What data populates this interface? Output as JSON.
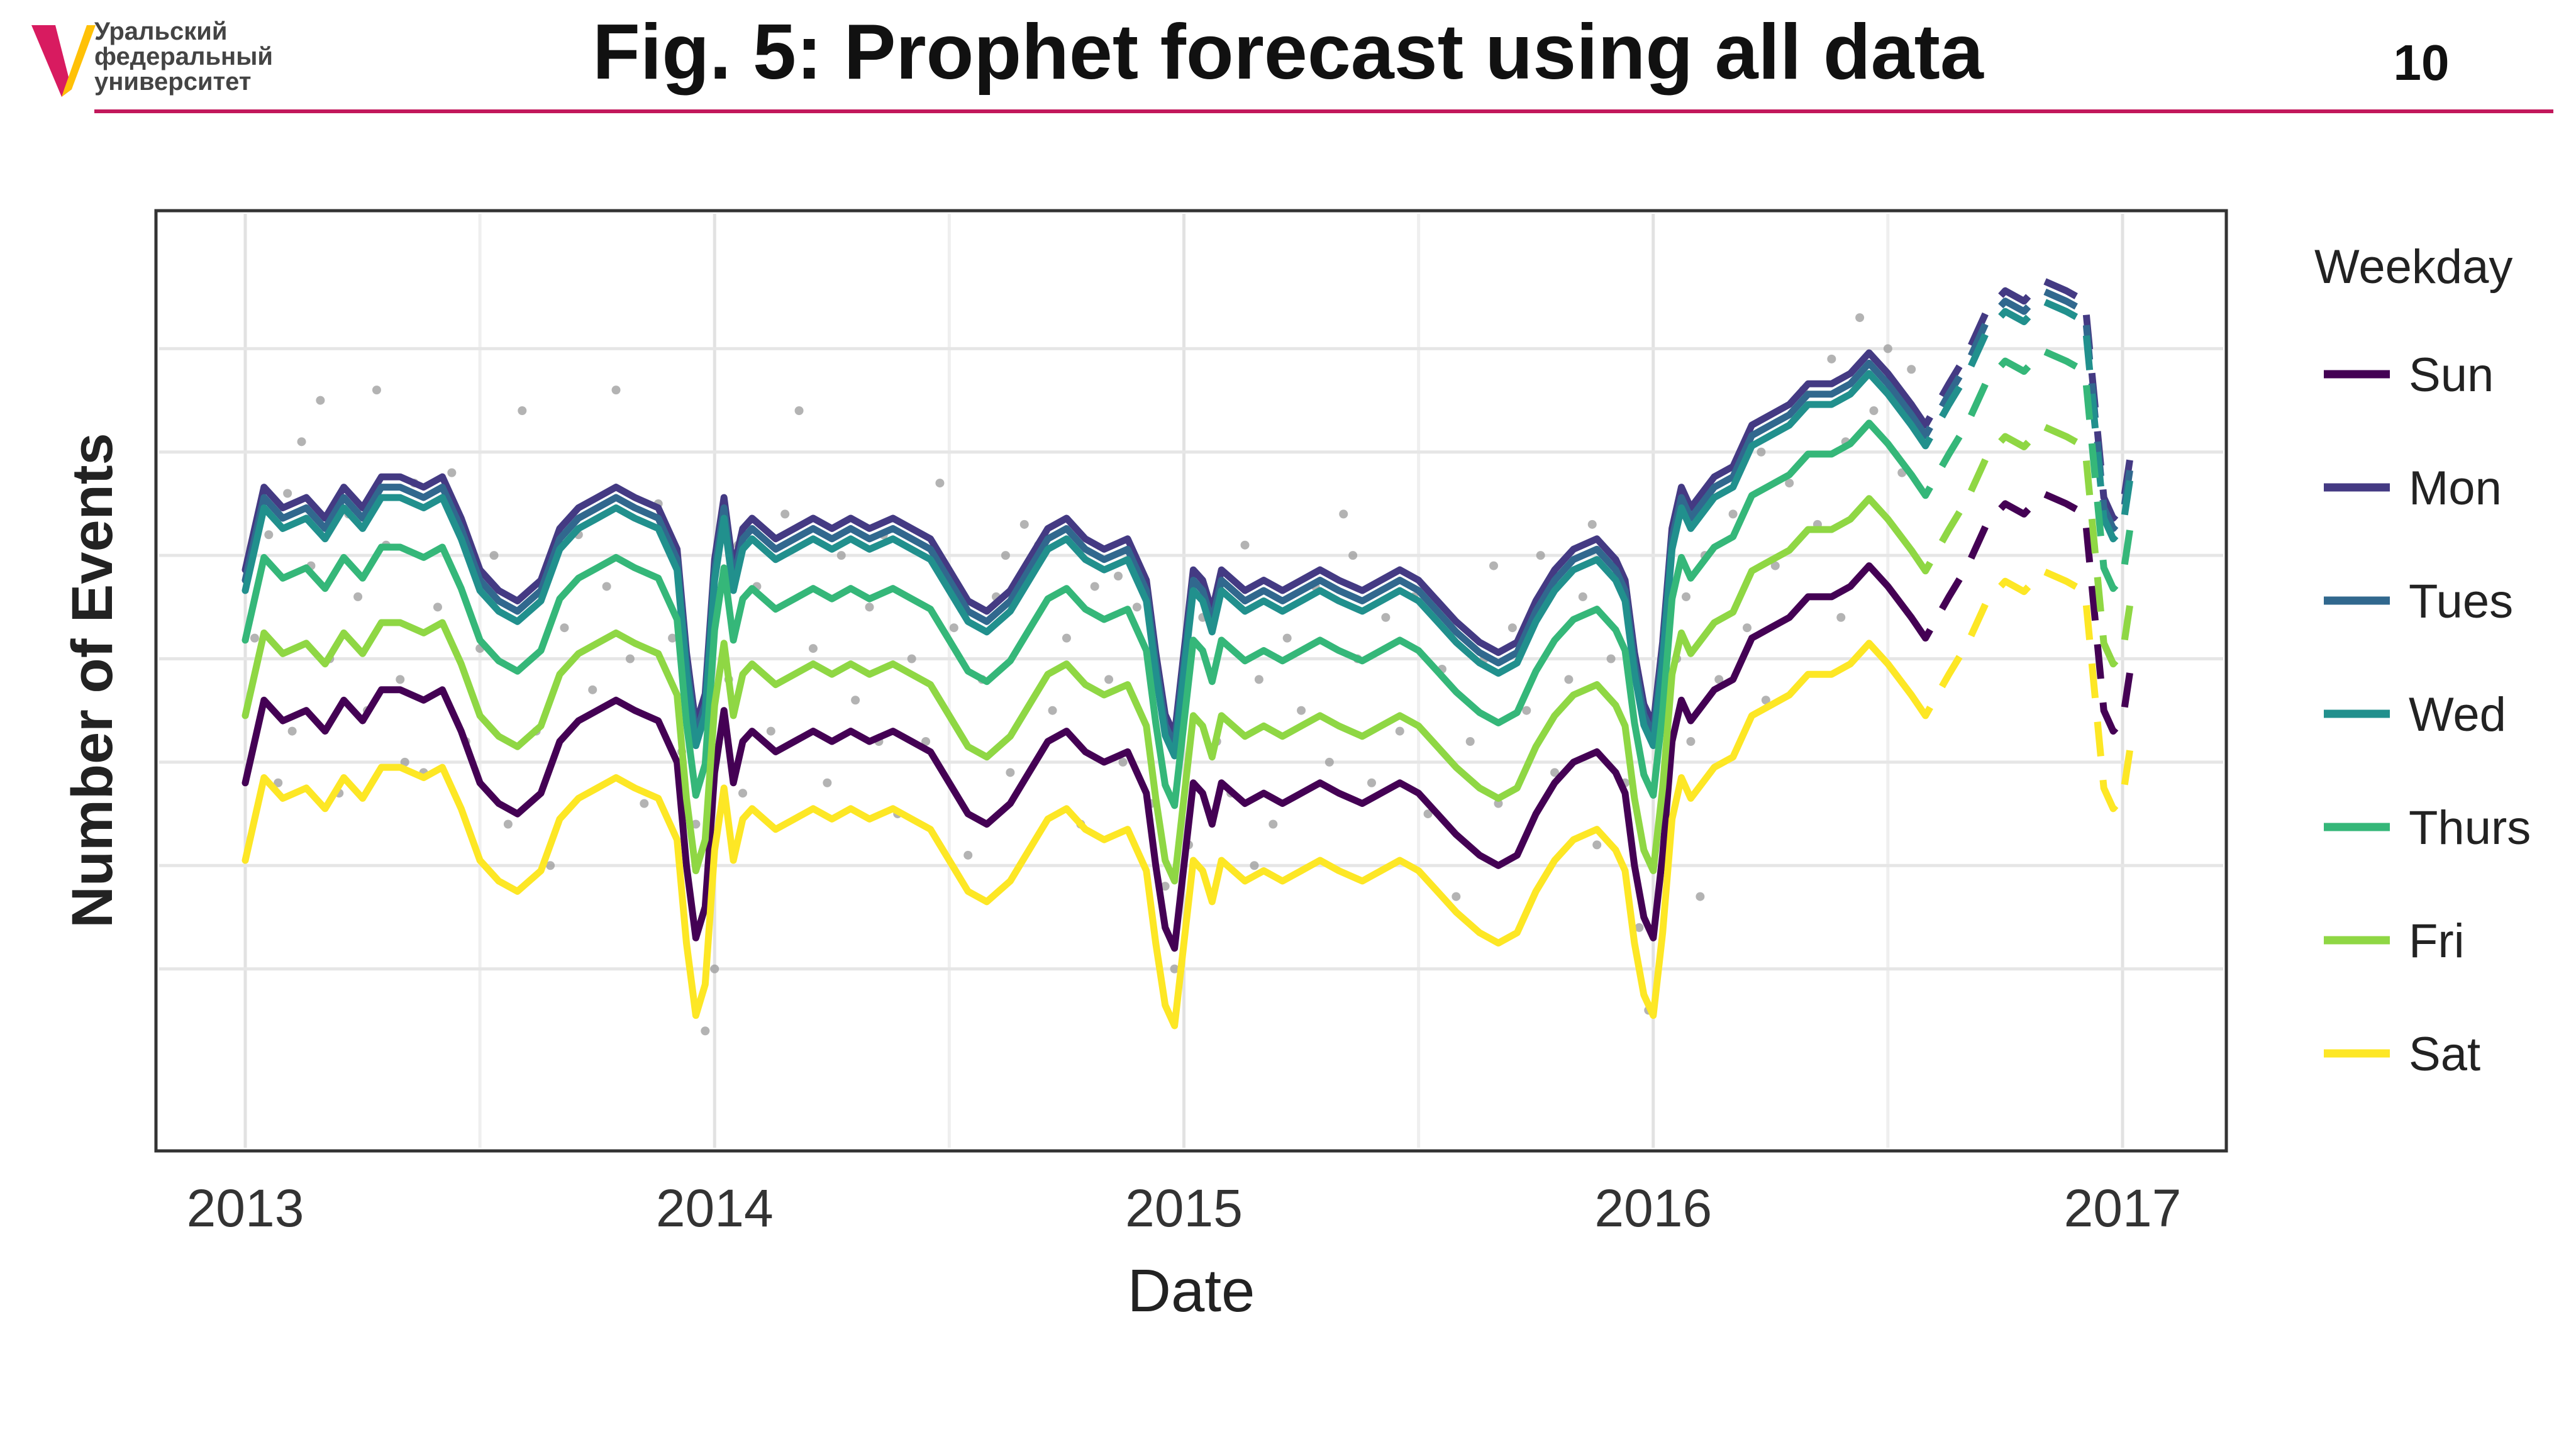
{
  "header": {
    "university_lines": [
      "Уральский",
      "федеральный",
      "университет"
    ],
    "title": "Fig. 5: Prophet forecast using all data",
    "slide_number": "10",
    "accent_color": "#c2185b",
    "logo_colors": [
      "#d81b60",
      "#ffc107"
    ]
  },
  "chart_data": {
    "type": "line",
    "title": "",
    "xlabel": "Date",
    "ylabel": "Number of Events",
    "x_ticks": [
      "2013",
      "2014",
      "2015",
      "2016",
      "2017"
    ],
    "xlim": [
      2013.0,
      2017.12
    ],
    "y_tick_labels_shown": false,
    "grid": true,
    "history_end": 2016.55,
    "forecast_style": "dashed",
    "legend": {
      "title": "Weekday",
      "position": "right"
    },
    "x": [
      2013.0,
      2013.04,
      2013.08,
      2013.13,
      2013.17,
      2013.21,
      2013.25,
      2013.29,
      2013.33,
      2013.38,
      2013.42,
      2013.46,
      2013.5,
      2013.54,
      2013.58,
      2013.63,
      2013.67,
      2013.71,
      2013.75,
      2013.79,
      2013.83,
      2013.88,
      2013.92,
      2013.94,
      2013.96,
      2013.98,
      2014.0,
      2014.02,
      2014.04,
      2014.06,
      2014.08,
      2014.13,
      2014.17,
      2014.21,
      2014.25,
      2014.29,
      2014.33,
      2014.38,
      2014.42,
      2014.46,
      2014.5,
      2014.54,
      2014.58,
      2014.63,
      2014.67,
      2014.71,
      2014.75,
      2014.79,
      2014.83,
      2014.88,
      2014.92,
      2014.94,
      2014.96,
      2014.98,
      2015.0,
      2015.02,
      2015.04,
      2015.06,
      2015.08,
      2015.13,
      2015.17,
      2015.21,
      2015.25,
      2015.29,
      2015.33,
      2015.38,
      2015.42,
      2015.46,
      2015.5,
      2015.54,
      2015.58,
      2015.63,
      2015.67,
      2015.71,
      2015.75,
      2015.79,
      2015.83,
      2015.88,
      2015.92,
      2015.94,
      2015.96,
      2015.98,
      2016.0,
      2016.02,
      2016.04,
      2016.06,
      2016.08,
      2016.13,
      2016.17,
      2016.21,
      2016.25,
      2016.29,
      2016.33,
      2016.38,
      2016.42,
      2016.46,
      2016.5,
      2016.55,
      2016.58,
      2016.63,
      2016.67,
      2016.71,
      2016.75,
      2016.79,
      2016.83,
      2016.88,
      2016.92,
      2016.96,
      2016.98,
      2017.0,
      2017.02
    ],
    "base": [
      48,
      56,
      54,
      55,
      53,
      56,
      54,
      57,
      57,
      56,
      57,
      53,
      48,
      46,
      45,
      47,
      52,
      54,
      55,
      56,
      55,
      54,
      50,
      40,
      33,
      36,
      49,
      55,
      48,
      52,
      53,
      51,
      52,
      53,
      52,
      53,
      52,
      53,
      52,
      51,
      48,
      45,
      44,
      46,
      49,
      52,
      53,
      51,
      50,
      51,
      47,
      40,
      34,
      32,
      40,
      48,
      47,
      44,
      48,
      46,
      47,
      46,
      47,
      48,
      47,
      46,
      47,
      48,
      47,
      45,
      43,
      41,
      40,
      41,
      45,
      48,
      50,
      51,
      49,
      47,
      40,
      35,
      33,
      41,
      52,
      56,
      54,
      57,
      58,
      62,
      63,
      64,
      66,
      66,
      67,
      69,
      67,
      64,
      62,
      66,
      69,
      73,
      75,
      74,
      76,
      75,
      74,
      55,
      53,
      54,
      60
    ],
    "series": [
      {
        "name": "Sun",
        "color": "#440154",
        "offset": 0
      },
      {
        "name": "Mon",
        "color": "#443a83",
        "offset": 20.6
      },
      {
        "name": "Tues",
        "color": "#31688e",
        "offset": 19.6
      },
      {
        "name": "Wed",
        "color": "#21908d",
        "offset": 18.6
      },
      {
        "name": "Thurs",
        "color": "#35b779",
        "offset": 13.8
      },
      {
        "name": "Fri",
        "color": "#8fd744",
        "offset": 6.5
      },
      {
        "name": "Sat",
        "color": "#fde725",
        "offset": -7.5
      }
    ],
    "points": {
      "color": "#9a9a9a",
      "values": [
        [
          2013.02,
          62
        ],
        [
          2013.05,
          72
        ],
        [
          2013.07,
          48
        ],
        [
          2013.1,
          53
        ],
        [
          2013.12,
          81
        ],
        [
          2013.14,
          69
        ],
        [
          2013.16,
          85
        ],
        [
          2013.18,
          60
        ],
        [
          2013.2,
          47
        ],
        [
          2013.22,
          74
        ],
        [
          2013.24,
          66
        ],
        [
          2013.26,
          55
        ],
        [
          2013.28,
          86
        ],
        [
          2013.3,
          71
        ],
        [
          2013.33,
          58
        ],
        [
          2013.36,
          77
        ],
        [
          2013.38,
          49
        ],
        [
          2013.41,
          65
        ],
        [
          2013.44,
          78
        ],
        [
          2013.47,
          52
        ],
        [
          2013.5,
          61
        ],
        [
          2013.53,
          70
        ],
        [
          2013.56,
          44
        ],
        [
          2013.59,
          84
        ],
        [
          2013.62,
          53
        ],
        [
          2013.65,
          40
        ],
        [
          2013.68,
          63
        ],
        [
          2013.71,
          72
        ],
        [
          2013.74,
          57
        ],
        [
          2013.77,
          67
        ],
        [
          2013.79,
          86
        ],
        [
          2013.82,
          60
        ],
        [
          2013.85,
          46
        ],
        [
          2013.88,
          75
        ],
        [
          2013.91,
          62
        ],
        [
          2013.93,
          51
        ],
        [
          2013.96,
          44
        ],
        [
          2013.98,
          24
        ],
        [
          2014.0,
          30
        ],
        [
          2014.03,
          58
        ],
        [
          2014.06,
          47
        ],
        [
          2014.09,
          67
        ],
        [
          2014.12,
          53
        ],
        [
          2014.15,
          74
        ],
        [
          2014.18,
          84
        ],
        [
          2014.21,
          61
        ],
        [
          2014.24,
          48
        ],
        [
          2014.27,
          70
        ],
        [
          2014.3,
          56
        ],
        [
          2014.33,
          65
        ],
        [
          2014.36,
          72
        ],
        [
          2014.39,
          45
        ],
        [
          2014.42,
          60
        ],
        [
          2014.45,
          52
        ],
        [
          2014.48,
          77
        ],
        [
          2014.51,
          63
        ],
        [
          2014.54,
          41
        ],
        [
          2014.57,
          58
        ],
        [
          2014.6,
          66
        ],
        [
          2014.63,
          49
        ],
        [
          2014.66,
          73
        ],
        [
          2014.69,
          71
        ],
        [
          2014.72,
          55
        ],
        [
          2014.75,
          62
        ],
        [
          2014.78,
          44
        ],
        [
          2014.81,
          67
        ],
        [
          2014.84,
          58
        ],
        [
          2014.87,
          50
        ],
        [
          2014.9,
          65
        ],
        [
          2014.93,
          46
        ],
        [
          2014.96,
          38
        ],
        [
          2014.98,
          30
        ],
        [
          2015.01,
          42
        ],
        [
          2015.04,
          64
        ],
        [
          2015.07,
          52
        ],
        [
          2015.1,
          47
        ],
        [
          2015.13,
          71
        ],
        [
          2015.16,
          58
        ],
        [
          2015.19,
          44
        ],
        [
          2015.22,
          62
        ],
        [
          2015.25,
          55
        ],
        [
          2015.28,
          67
        ],
        [
          2015.31,
          50
        ],
        [
          2015.34,
          74
        ],
        [
          2015.37,
          60
        ],
        [
          2015.4,
          48
        ],
        [
          2015.43,
          64
        ],
        [
          2015.46,
          53
        ],
        [
          2015.49,
          66
        ],
        [
          2015.52,
          45
        ],
        [
          2015.55,
          59
        ],
        [
          2015.58,
          37
        ],
        [
          2015.61,
          52
        ],
        [
          2015.64,
          60
        ],
        [
          2015.67,
          46
        ],
        [
          2015.7,
          63
        ],
        [
          2015.73,
          55
        ],
        [
          2015.76,
          70
        ],
        [
          2015.79,
          49
        ],
        [
          2015.82,
          58
        ],
        [
          2015.85,
          66
        ],
        [
          2015.88,
          42
        ],
        [
          2015.91,
          60
        ],
        [
          2015.94,
          48
        ],
        [
          2015.97,
          34
        ],
        [
          2015.99,
          26
        ],
        [
          2016.02,
          45
        ],
        [
          2016.05,
          60
        ],
        [
          2016.08,
          52
        ],
        [
          2016.11,
          70
        ],
        [
          2016.14,
          58
        ],
        [
          2016.17,
          74
        ],
        [
          2016.2,
          63
        ],
        [
          2016.23,
          80
        ],
        [
          2016.26,
          69
        ],
        [
          2016.29,
          77
        ],
        [
          2016.32,
          86
        ],
        [
          2016.35,
          73
        ],
        [
          2016.38,
          89
        ],
        [
          2016.41,
          81
        ],
        [
          2016.44,
          93
        ],
        [
          2016.47,
          84
        ],
        [
          2016.5,
          90
        ],
        [
          2016.53,
          78
        ],
        [
          2016.55,
          88
        ],
        [
          2013.09,
          76
        ],
        [
          2013.34,
          50
        ],
        [
          2013.64,
          68
        ],
        [
          2014.05,
          71
        ],
        [
          2014.35,
          52
        ],
        [
          2014.62,
          70
        ],
        [
          2014.86,
          68
        ],
        [
          2015.15,
          40
        ],
        [
          2015.36,
          70
        ],
        [
          2015.66,
          69
        ],
        [
          2015.87,
          73
        ],
        [
          2016.07,
          66
        ],
        [
          2016.24,
          56
        ],
        [
          2016.4,
          64
        ],
        [
          2016.1,
          37
        ]
      ]
    }
  }
}
